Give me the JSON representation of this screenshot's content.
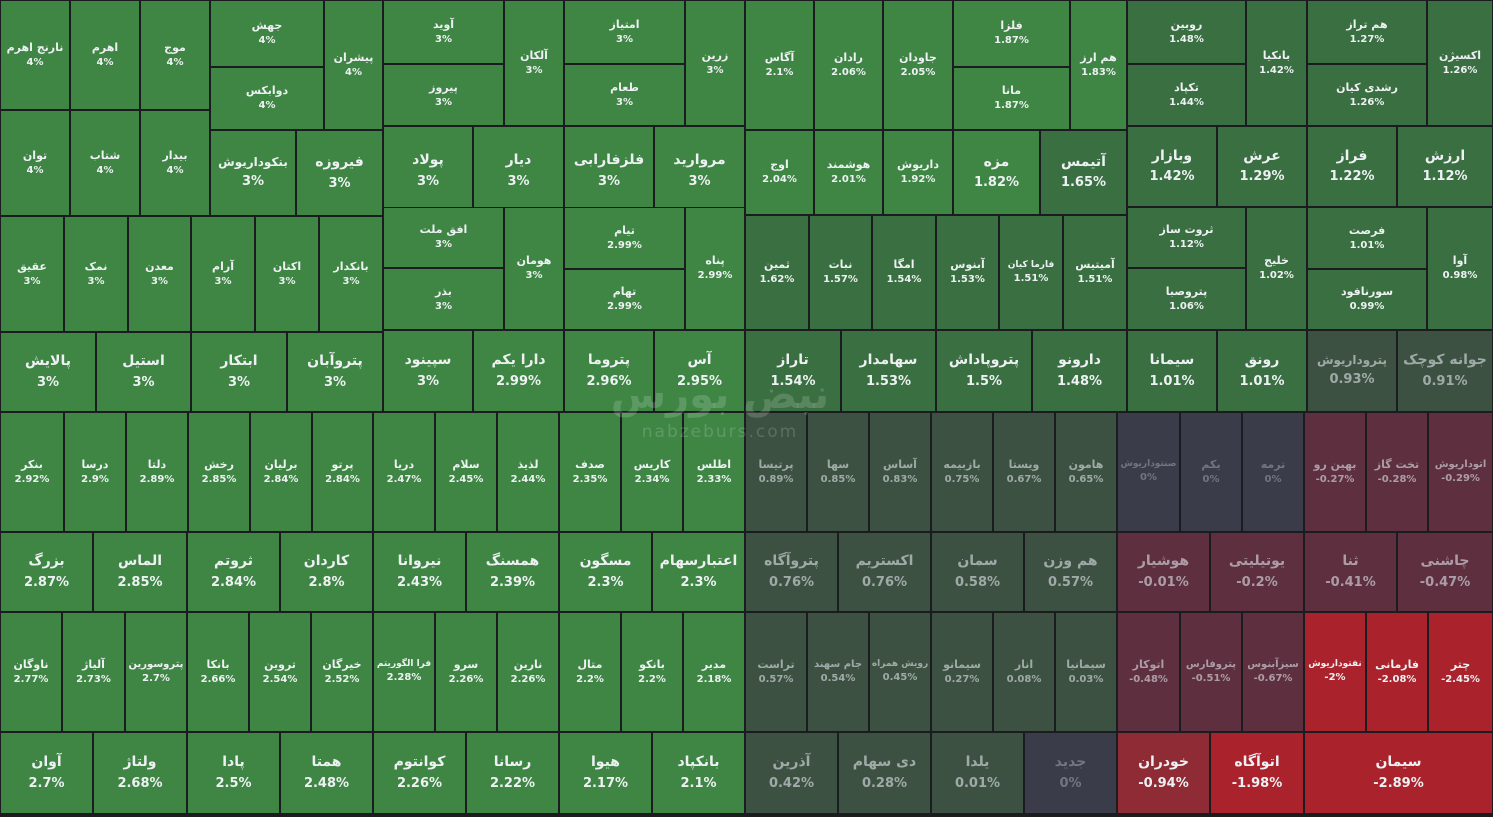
{
  "watermark": {
    "brand": "نبض بورس",
    "site": "nabzeburs.com"
  },
  "colors": {
    "strong_green": "#3f8645",
    "mid_green": "#3a6f41",
    "pale_green": "#3d5142",
    "neutral": "#3a3c4a",
    "pale_red": "#5e2f3e",
    "mid_red": "#8e2b35",
    "strong_red": "#a9222c"
  },
  "chart_data": {
    "type": "treemap",
    "unit": "%",
    "cells": [
      {
        "name": "نارنج اهرم",
        "value": 4
      },
      {
        "name": "اهرم",
        "value": 4
      },
      {
        "name": "موج",
        "value": 4
      },
      {
        "name": "جهش",
        "value": 4
      },
      {
        "name": "دوابکس",
        "value": 4
      },
      {
        "name": "پیشران",
        "value": 4
      },
      {
        "name": "توان",
        "value": 4
      },
      {
        "name": "شتاب",
        "value": 4
      },
      {
        "name": "بیدار",
        "value": 4
      },
      {
        "name": "بنکوداریوش",
        "value": 3
      },
      {
        "name": "فیروزه",
        "value": 3
      },
      {
        "name": "آوید",
        "value": 3
      },
      {
        "name": "پیروز",
        "value": 3
      },
      {
        "name": "آلکان",
        "value": 3
      },
      {
        "name": "امتیاز",
        "value": 3
      },
      {
        "name": "طعام",
        "value": 3
      },
      {
        "name": "زرین",
        "value": 3
      },
      {
        "name": "پولاد",
        "value": 3
      },
      {
        "name": "دیار",
        "value": 3
      },
      {
        "name": "فلزفارابی",
        "value": 3
      },
      {
        "name": "مروارید",
        "value": 3
      },
      {
        "name": "عقیق",
        "value": 3
      },
      {
        "name": "نمک",
        "value": 3
      },
      {
        "name": "معدن",
        "value": 3
      },
      {
        "name": "آرام",
        "value": 3
      },
      {
        "name": "اکتان",
        "value": 3
      },
      {
        "name": "بانکدار",
        "value": 3
      },
      {
        "name": "افق ملت",
        "value": 3
      },
      {
        "name": "بذر",
        "value": 3
      },
      {
        "name": "هومان",
        "value": 3
      },
      {
        "name": "تیام",
        "value": 2.99
      },
      {
        "name": "تهام",
        "value": 2.99
      },
      {
        "name": "پناه",
        "value": 2.99
      },
      {
        "name": "پالایش",
        "value": 3
      },
      {
        "name": "استیل",
        "value": 3
      },
      {
        "name": "ابتکار",
        "value": 3
      },
      {
        "name": "پتروآبان",
        "value": 3
      },
      {
        "name": "سپینود",
        "value": 3
      },
      {
        "name": "دارا یکم",
        "value": 2.99
      },
      {
        "name": "پتروما",
        "value": 2.96
      },
      {
        "name": "آس",
        "value": 2.95
      },
      {
        "name": "آگاس",
        "value": 2.1
      },
      {
        "name": "رادان",
        "value": 2.06
      },
      {
        "name": "جاودان",
        "value": 2.05
      },
      {
        "name": "فلزا",
        "value": 1.87
      },
      {
        "name": "مانا",
        "value": 1.87
      },
      {
        "name": "هم ارز",
        "value": 1.83
      },
      {
        "name": "اوج",
        "value": 2.04
      },
      {
        "name": "هوشمند",
        "value": 2.01
      },
      {
        "name": "داریوش",
        "value": 1.92
      },
      {
        "name": "مزه",
        "value": 1.82
      },
      {
        "name": "آتیمس",
        "value": 1.65
      },
      {
        "name": "ثمین",
        "value": 1.62
      },
      {
        "name": "نبات",
        "value": 1.57
      },
      {
        "name": "امگا",
        "value": 1.54
      },
      {
        "name": "آبنوس",
        "value": 1.53
      },
      {
        "name": "فارما کیان",
        "value": 1.51
      },
      {
        "name": "آمیتیس",
        "value": 1.51
      },
      {
        "name": "تاراز",
        "value": 1.54
      },
      {
        "name": "سهامدار",
        "value": 1.53
      },
      {
        "name": "پتروپاداش",
        "value": 1.5
      },
      {
        "name": "دارونو",
        "value": 1.48
      },
      {
        "name": "روبین",
        "value": 1.48
      },
      {
        "name": "تکپاد",
        "value": 1.44
      },
      {
        "name": "بانکیا",
        "value": 1.42
      },
      {
        "name": "هم تراز",
        "value": 1.27
      },
      {
        "name": "رشدی کیان",
        "value": 1.26
      },
      {
        "name": "اکسیژن",
        "value": 1.26
      },
      {
        "name": "وبازار",
        "value": 1.42
      },
      {
        "name": "عرش",
        "value": 1.29
      },
      {
        "name": "فراز",
        "value": 1.22
      },
      {
        "name": "ارزش",
        "value": 1.12
      },
      {
        "name": "ثروت ساز",
        "value": 1.12
      },
      {
        "name": "پتروصبا",
        "value": 1.06
      },
      {
        "name": "خلیج",
        "value": 1.02
      },
      {
        "name": "فرصت",
        "value": 1.01
      },
      {
        "name": "سورنافود",
        "value": 0.99
      },
      {
        "name": "آوا",
        "value": 0.98
      },
      {
        "name": "سیمانا",
        "value": 1.01
      },
      {
        "name": "رونق",
        "value": 1.01
      },
      {
        "name": "پتروداریوش",
        "value": 0.93
      },
      {
        "name": "جوانه کوچک",
        "value": 0.91
      },
      {
        "name": "بنکر",
        "value": 2.92
      },
      {
        "name": "درسا",
        "value": 2.9
      },
      {
        "name": "دلتا",
        "value": 2.89
      },
      {
        "name": "رخش",
        "value": 2.85
      },
      {
        "name": "برلیان",
        "value": 2.84
      },
      {
        "name": "پرتو",
        "value": 2.84
      },
      {
        "name": "دریا",
        "value": 2.47
      },
      {
        "name": "سلام",
        "value": 2.45
      },
      {
        "name": "لذیذ",
        "value": 2.44
      },
      {
        "name": "صدف",
        "value": 2.35
      },
      {
        "name": "کاریس",
        "value": 2.34
      },
      {
        "name": "اطلس",
        "value": 2.33
      },
      {
        "name": "پرتیسا",
        "value": 0.89
      },
      {
        "name": "سها",
        "value": 0.85
      },
      {
        "name": "آساس",
        "value": 0.83
      },
      {
        "name": "بازبیمه",
        "value": 0.75
      },
      {
        "name": "ویستا",
        "value": 0.67
      },
      {
        "name": "هامون",
        "value": 0.65
      },
      {
        "name": "صنتوداریوش",
        "value": 0
      },
      {
        "name": "یکم",
        "value": 0
      },
      {
        "name": "ترمه",
        "value": 0
      },
      {
        "name": "بهین رو",
        "value": -0.27
      },
      {
        "name": "تخت گاز",
        "value": -0.28
      },
      {
        "name": "اتوداریوش",
        "value": -0.29
      },
      {
        "name": "بزرگ",
        "value": 2.87
      },
      {
        "name": "الماس",
        "value": 2.85
      },
      {
        "name": "ثروتم",
        "value": 2.84
      },
      {
        "name": "کاردان",
        "value": 2.8
      },
      {
        "name": "نیروانا",
        "value": 2.43
      },
      {
        "name": "همسنگ",
        "value": 2.39
      },
      {
        "name": "مسگون",
        "value": 2.3
      },
      {
        "name": "اعتبارسهام",
        "value": 2.3
      },
      {
        "name": "پتروآگاه",
        "value": 0.76
      },
      {
        "name": "اکستریم",
        "value": 0.76
      },
      {
        "name": "سمان",
        "value": 0.58
      },
      {
        "name": "هم وزن",
        "value": 0.57
      },
      {
        "name": "هوشیار",
        "value": -0.01
      },
      {
        "name": "یوتیلیتی",
        "value": -0.2
      },
      {
        "name": "ثنا",
        "value": -0.41
      },
      {
        "name": "چاشنی",
        "value": -0.47
      },
      {
        "name": "ناوگان",
        "value": 2.77
      },
      {
        "name": "آلیاژ",
        "value": 2.73
      },
      {
        "name": "پتروسورین",
        "value": 2.7
      },
      {
        "name": "بانکا",
        "value": 2.66
      },
      {
        "name": "تروین",
        "value": 2.54
      },
      {
        "name": "خیرگان",
        "value": 2.52
      },
      {
        "name": "فرا الگوریتم",
        "value": 2.28
      },
      {
        "name": "سرو",
        "value": 2.26
      },
      {
        "name": "نارین",
        "value": 2.26
      },
      {
        "name": "متال",
        "value": 2.2
      },
      {
        "name": "بانکو",
        "value": 2.2
      },
      {
        "name": "مدیر",
        "value": 2.18
      },
      {
        "name": "تراست",
        "value": 0.57
      },
      {
        "name": "جام سهند",
        "value": 0.54
      },
      {
        "name": "رویش همراه",
        "value": 0.45
      },
      {
        "name": "سیمانو",
        "value": 0.27
      },
      {
        "name": "انار",
        "value": 0.08
      },
      {
        "name": "سیمانیا",
        "value": 0.03
      },
      {
        "name": "اتوکار",
        "value": -0.48
      },
      {
        "name": "پتروفارس",
        "value": -0.51
      },
      {
        "name": "سیزآبنوس",
        "value": -0.67
      },
      {
        "name": "نفتوداریوش",
        "value": -2
      },
      {
        "name": "فارمانی",
        "value": -2.08
      },
      {
        "name": "چتر",
        "value": -2.45
      },
      {
        "name": "آوان",
        "value": 2.7
      },
      {
        "name": "ولتاژ",
        "value": 2.68
      },
      {
        "name": "پادا",
        "value": 2.5
      },
      {
        "name": "همتا",
        "value": 2.48
      },
      {
        "name": "کوانتوم",
        "value": 2.26
      },
      {
        "name": "رسانا",
        "value": 2.22
      },
      {
        "name": "هیوا",
        "value": 2.17
      },
      {
        "name": "بانکپاد",
        "value": 2.1
      },
      {
        "name": "آذرین",
        "value": 0.42
      },
      {
        "name": "دی سهام",
        "value": 0.28
      },
      {
        "name": "یلدا",
        "value": 0.01
      },
      {
        "name": "جدید",
        "value": 0
      },
      {
        "name": "خودران",
        "value": -0.94
      },
      {
        "name": "اتوآگاه",
        "value": -1.98
      },
      {
        "name": "سیمان",
        "value": -2.89
      }
    ]
  }
}
